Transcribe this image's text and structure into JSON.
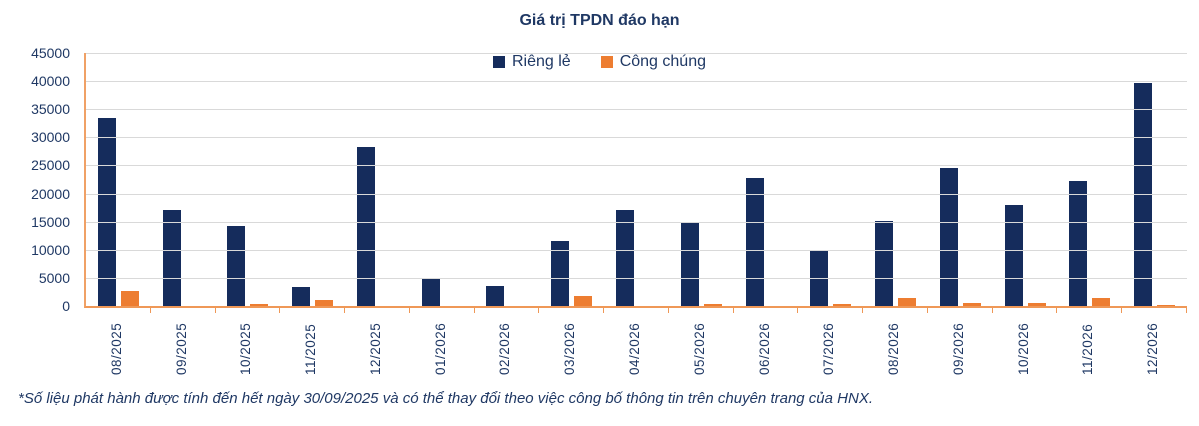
{
  "chart": {
    "title": "Giá trị TPDN đáo hạn",
    "footnote": "*Số liệu phát hành được tính đến hết ngày 30/09/2025 và có thể thay đổi theo việc công bố thông tin trên chuyên trang của HNX."
  },
  "chart_data": {
    "type": "bar",
    "title": "Giá trị TPDN đáo hạn",
    "categories": [
      "08/2025",
      "09/2025",
      "10/2025",
      "11/2025",
      "12/2025",
      "01/2026",
      "02/2026",
      "03/2026",
      "04/2026",
      "05/2026",
      "06/2026",
      "07/2026",
      "08/2026",
      "09/2026",
      "10/2026",
      "11/2026",
      "12/2026"
    ],
    "series": [
      {
        "name": "Riêng lẻ",
        "color": "#152c5c",
        "values": [
          33500,
          17000,
          14300,
          3400,
          28200,
          4900,
          3500,
          11500,
          17000,
          15000,
          22800,
          9900,
          15200,
          24600,
          18000,
          22300,
          39600
        ]
      },
      {
        "name": "Công chúng",
        "color": "#ed7d31",
        "values": [
          2700,
          0,
          400,
          1000,
          0,
          0,
          0,
          1800,
          0,
          300,
          0,
          300,
          1500,
          600,
          500,
          1500,
          200
        ]
      }
    ],
    "xlabel": "",
    "ylabel": "",
    "ylim": [
      0,
      45000
    ],
    "y_ticks": [
      45000,
      40000,
      35000,
      30000,
      25000,
      20000,
      15000,
      10000,
      5000,
      0
    ],
    "grid": true,
    "legend_position": "top"
  },
  "colors": {
    "text": "#1f3864",
    "bar_navy": "#152c5c",
    "bar_orange": "#ed7d31",
    "axis_line": "#ef9857",
    "gridline": "#d9d9d9",
    "background": "#ffffff"
  }
}
